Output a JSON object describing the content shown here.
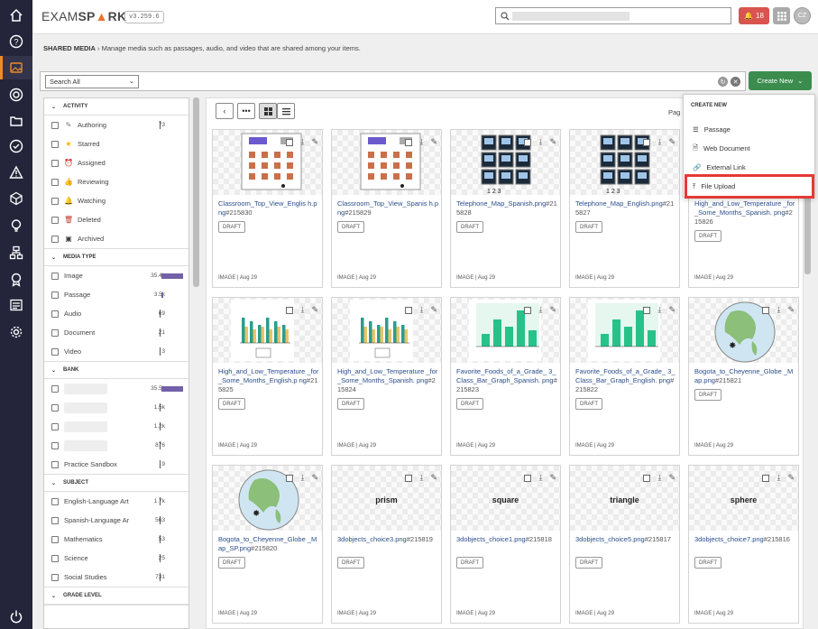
{
  "header": {
    "logo_prefix": "EXAM",
    "logo_o": "S",
    "logo_mid": "P",
    "logo_spark": "RK",
    "logo_a": "A",
    "version": "v3.259.6",
    "notifications": "18",
    "avatar": "CZ"
  },
  "breadcrumb": {
    "section": "SHARED MEDIA",
    "separator": "›",
    "description": "Manage media such as passages, audio, and video that are shared among your items."
  },
  "search": {
    "scope": "Search All"
  },
  "create": {
    "label": "Create New",
    "menu_header": "CREATE NEW",
    "items": [
      "Passage",
      "Web Document",
      "External Link",
      "File Upload"
    ]
  },
  "filters": {
    "activity": {
      "title": "ACTIVITY",
      "items": [
        {
          "label": "Authoring",
          "count": "73",
          "icon": "pencil-icon"
        },
        {
          "label": "Starred",
          "icon": "star-icon"
        },
        {
          "label": "Assigned",
          "icon": "alarm-icon"
        },
        {
          "label": "Reviewing",
          "icon": "thumbs-up-icon"
        },
        {
          "label": "Watching",
          "icon": "bell-icon"
        },
        {
          "label": "Deleted",
          "icon": "trash-icon"
        },
        {
          "label": "Archived",
          "icon": "archive-icon"
        }
      ]
    },
    "media_type": {
      "title": "MEDIA TYPE",
      "items": [
        {
          "label": "Image",
          "count": "35.4k",
          "fill": 1.0
        },
        {
          "label": "Passage",
          "count": "3.5k",
          "fill": 0.1
        },
        {
          "label": "Audio",
          "count": "69"
        },
        {
          "label": "Document",
          "count": "21"
        },
        {
          "label": "Video",
          "count": "3"
        }
      ]
    },
    "bank": {
      "title": "BANK",
      "items": [
        {
          "count": "35.5k",
          "fill": 1.0
        },
        {
          "count": "1.5k"
        },
        {
          "count": "1.2k"
        },
        {
          "count": "876"
        },
        {
          "label": "Practice Sandbox",
          "count": "9"
        }
      ]
    },
    "subject": {
      "title": "SUBJECT",
      "items": [
        {
          "label": "English-Language Art",
          "count": "1.7k"
        },
        {
          "label": "Spanish-Language Ar",
          "count": "563"
        },
        {
          "label": "Mathematics",
          "count": "53"
        },
        {
          "label": "Science",
          "count": "25"
        },
        {
          "label": "Social Studies",
          "count": "731"
        }
      ]
    },
    "grade": {
      "title": "GRADE LEVEL"
    }
  },
  "toolbar": {
    "page_label": "Pag"
  },
  "cards": [
    {
      "name": "Classroom_Top_View_Englis h.png",
      "id": "#215830",
      "status": "DRAFT",
      "meta": "IMAGE | Aug 29",
      "thumb": "classroom"
    },
    {
      "name": "Classroom_Top_View_Spanis h.png",
      "id": "#215829",
      "status": "DRAFT",
      "meta": "IMAGE | Aug 29",
      "thumb": "classroom"
    },
    {
      "name": "Telephone_Map_Spanish.png",
      "id": "#215828",
      "status": "DRAFT",
      "meta": "IMAGE | Aug 29",
      "thumb": "phone"
    },
    {
      "name": "Telephone_Map_English.png",
      "id": "#215827",
      "status": "DRAFT",
      "meta": "IMAGE | Aug 29",
      "thumb": "phone"
    },
    {
      "name": "High_and_Low_Temperature _for_Some_Months_Spanish. png",
      "id": "#215826",
      "status": "DRAFT",
      "meta": "IMAGE | Aug 29",
      "thumb": "hidden"
    },
    {
      "name": "High_and_Low_Temperature _for_Some_Months_English.p ng",
      "id": "#215825",
      "status": "DRAFT",
      "meta": "IMAGE | Aug 29",
      "thumb": "temp"
    },
    {
      "name": "High_and_Low_Temperature _for_Some_Months_Spanish. png",
      "id": "#215824",
      "status": "DRAFT",
      "meta": "IMAGE | Aug 29",
      "thumb": "temp"
    },
    {
      "name": "Favorite_Foods_of_a_Grade_ 3_Class_Bar_Graph_Spanish. png",
      "id": "#215823",
      "status": "DRAFT",
      "meta": "IMAGE | Aug 29",
      "thumb": "bars"
    },
    {
      "name": "Favorite_Foods_of_a_Grade_ 3_Class_Bar_Graph_English. png",
      "id": "#215822",
      "status": "DRAFT",
      "meta": "IMAGE | Aug 29",
      "thumb": "bars"
    },
    {
      "name": "Bogota_to_Cheyenne_Globe _Map.png",
      "id": "#215821",
      "status": "DRAFT",
      "meta": "IMAGE | Aug 29",
      "thumb": "globe"
    },
    {
      "name": "Bogota_to_Cheyenne_Globe _Map_SP.png",
      "id": "#215820",
      "status": "DRAFT",
      "meta": "IMAGE | Aug 29",
      "thumb": "globe"
    },
    {
      "name": "3dobjects_choice3.png",
      "id": "#215819",
      "status": "DRAFT",
      "meta": "IMAGE | Aug 29",
      "thumb": "word",
      "word": "prism"
    },
    {
      "name": "3dobjects_choice1.png",
      "id": "#215818",
      "status": "DRAFT",
      "meta": "IMAGE | Aug 29",
      "thumb": "word",
      "word": "square"
    },
    {
      "name": "3dobjects_choice5.png",
      "id": "#215817",
      "status": "DRAFT",
      "meta": "IMAGE | Aug 29",
      "thumb": "word",
      "word": "triangle"
    },
    {
      "name": "3dobjects_choice7.png",
      "id": "#215816",
      "status": "DRAFT",
      "meta": "IMAGE | Aug 29",
      "thumb": "word",
      "word": "sphere"
    }
  ],
  "colors": {
    "rail": "#24253a",
    "accent": "#f08a24",
    "create": "#3c8c4e",
    "highlight": "#e53935",
    "bar": "#7460a8"
  }
}
